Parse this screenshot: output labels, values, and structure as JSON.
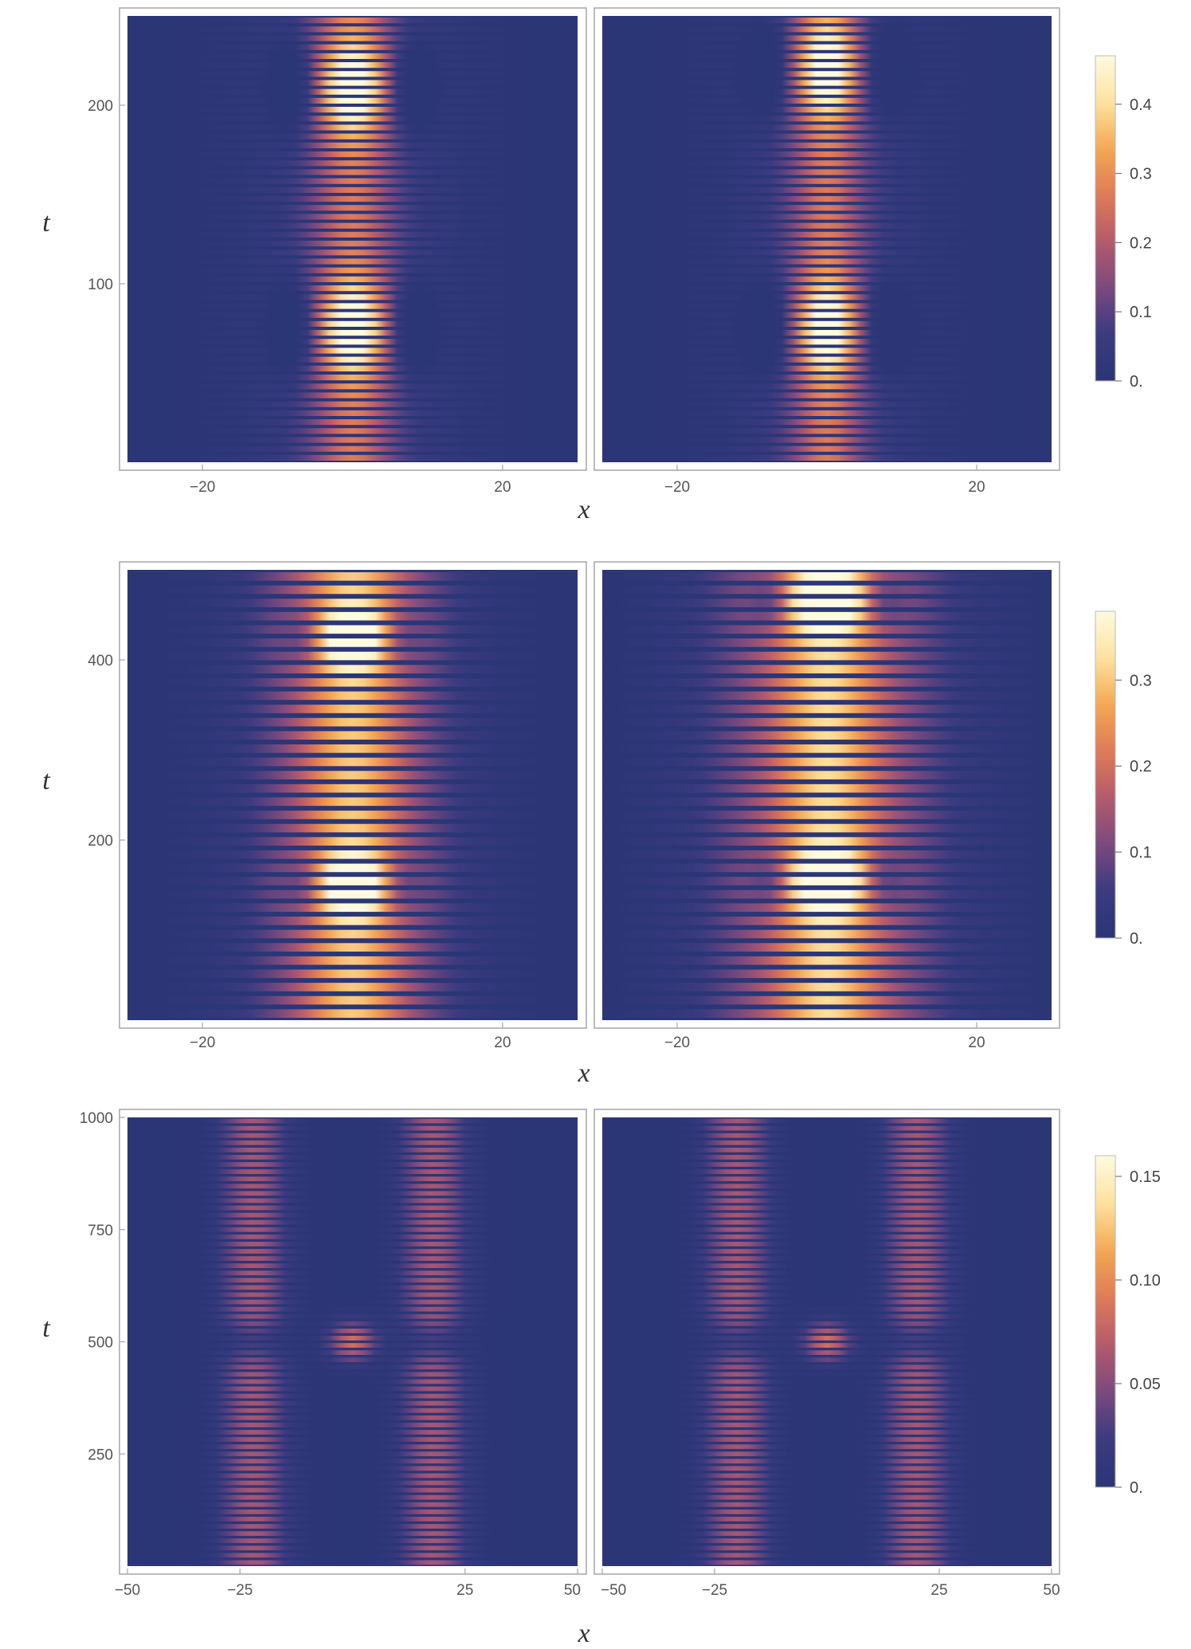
{
  "figure": {
    "rows": [
      {
        "xlabel": "x",
        "ylabel": "t"
      },
      {
        "xlabel": "x",
        "ylabel": "t"
      },
      {
        "xlabel": "x",
        "ylabel": "t"
      }
    ]
  },
  "colors": {
    "colormap": [
      "#2b3676",
      "#3a3a80",
      "#7a4a7e",
      "#b45a6c",
      "#e07a58",
      "#f3a852",
      "#fde2a0",
      "#fffbe0"
    ],
    "frame": "#a6a6a6",
    "tick": "#555555"
  },
  "chart_data": [
    {
      "type": "heatmap",
      "panel": "row1-left",
      "xlabel": "x",
      "ylabel": "t",
      "xlim": [
        -30,
        30
      ],
      "ylim": [
        0,
        250
      ],
      "xticks": [
        -20,
        20
      ],
      "xtick_labels": [
        "−20",
        "20"
      ],
      "yticks": [
        100,
        200
      ],
      "ytick_labels": [
        "100",
        "200"
      ],
      "colorbar": null,
      "field": {
        "n_stripes": 50,
        "envelope_width": 4.5,
        "halo_width": 12,
        "halo_level": 0.22,
        "peaks_t": [
          75,
          210
        ],
        "peak_width": 24,
        "hole_offset": 8,
        "max": 0.46
      }
    },
    {
      "type": "heatmap",
      "panel": "row1-right",
      "xlabel": "",
      "ylabel": "",
      "xlim": [
        -30,
        30
      ],
      "ylim": [
        0,
        250
      ],
      "xticks": [
        -20,
        20
      ],
      "xtick_labels": [
        "−20",
        "20"
      ],
      "yticks": [],
      "ytick_labels": [],
      "colorbar": {
        "min": 0,
        "max": 0.47,
        "ticks": [
          0,
          0.1,
          0.2,
          0.3,
          0.4
        ],
        "tick_labels": [
          "0.",
          "0.1",
          "0.2",
          "0.3",
          "0.4"
        ]
      },
      "field": {
        "n_stripes": 50,
        "envelope_width": 4,
        "halo_width": 11,
        "halo_level": 0.22,
        "peaks_t": [
          75,
          220
        ],
        "peak_width": 24,
        "hole_offset": 8,
        "max": 0.47
      }
    },
    {
      "type": "heatmap",
      "panel": "row2-left",
      "xlabel": "x",
      "ylabel": "t",
      "xlim": [
        -30,
        30
      ],
      "ylim": [
        0,
        500
      ],
      "xticks": [
        -20,
        20
      ],
      "xtick_labels": [
        "−20",
        "20"
      ],
      "yticks": [
        200,
        400
      ],
      "ytick_labels": [
        "200",
        "400"
      ],
      "colorbar": null,
      "field": {
        "n_stripes": 34,
        "envelope_width": 6,
        "halo_width": 13,
        "halo_level": 0.45,
        "peaks_t": [
          150,
          425
        ],
        "peak_width": 30,
        "hole_offset": 6,
        "max": 0.38
      }
    },
    {
      "type": "heatmap",
      "panel": "row2-right",
      "xlabel": "",
      "ylabel": "",
      "xlim": [
        -30,
        30
      ],
      "ylim": [
        0,
        500
      ],
      "xticks": [
        -20,
        20
      ],
      "xtick_labels": [
        "−20",
        "20"
      ],
      "yticks": [],
      "ytick_labels": [],
      "colorbar": {
        "min": 0,
        "max": 0.38,
        "ticks": [
          0,
          0.1,
          0.2,
          0.3
        ],
        "tick_labels": [
          "0.",
          "0.1",
          "0.2",
          "0.3"
        ]
      },
      "field": {
        "n_stripes": 34,
        "envelope_width": 6,
        "halo_width": 15,
        "halo_level": 0.5,
        "peaks_t": [
          155,
          465
        ],
        "peak_width": 30,
        "hole_offset": 7,
        "max": 0.38
      }
    },
    {
      "type": "heatmap",
      "panel": "row3-left",
      "xlabel": "x",
      "ylabel": "t",
      "xlim": [
        -50,
        50
      ],
      "ylim": [
        0,
        1000
      ],
      "xticks": [
        -50,
        -25,
        25,
        50
      ],
      "xtick_labels": [
        "−50",
        "−25",
        "25",
        "50"
      ],
      "yticks": [
        250,
        500,
        750,
        1000
      ],
      "ytick_labels": [
        "250",
        "500",
        "750",
        "1000"
      ],
      "colorbar": null,
      "field": {
        "n_stripes": 62,
        "envelope_width": 5,
        "halo_width": 7,
        "halo_level": 0.4,
        "side_bands": [
          -22,
          18
        ],
        "peaks_t": [
          500
        ],
        "peak_width": 45,
        "hole_offset": 11,
        "max": 0.16
      }
    },
    {
      "type": "heatmap",
      "panel": "row3-right",
      "xlabel": "",
      "ylabel": "",
      "xlim": [
        -50,
        50
      ],
      "ylim": [
        0,
        1000
      ],
      "xticks": [
        -50,
        -25,
        25,
        50
      ],
      "xtick_labels": [
        "−50",
        "−25",
        "25",
        "50"
      ],
      "yticks": [],
      "ytick_labels": [],
      "colorbar": {
        "min": 0,
        "max": 0.16,
        "ticks": [
          0,
          0.05,
          0.1,
          0.15
        ],
        "tick_labels": [
          "0.",
          "0.05",
          "0.10",
          "0.15"
        ]
      },
      "field": {
        "n_stripes": 62,
        "envelope_width": 5,
        "halo_width": 7,
        "halo_level": 0.4,
        "side_bands": [
          -20,
          20
        ],
        "peaks_t": [
          500
        ],
        "peak_width": 45,
        "hole_offset": 11,
        "max": 0.16
      }
    }
  ]
}
